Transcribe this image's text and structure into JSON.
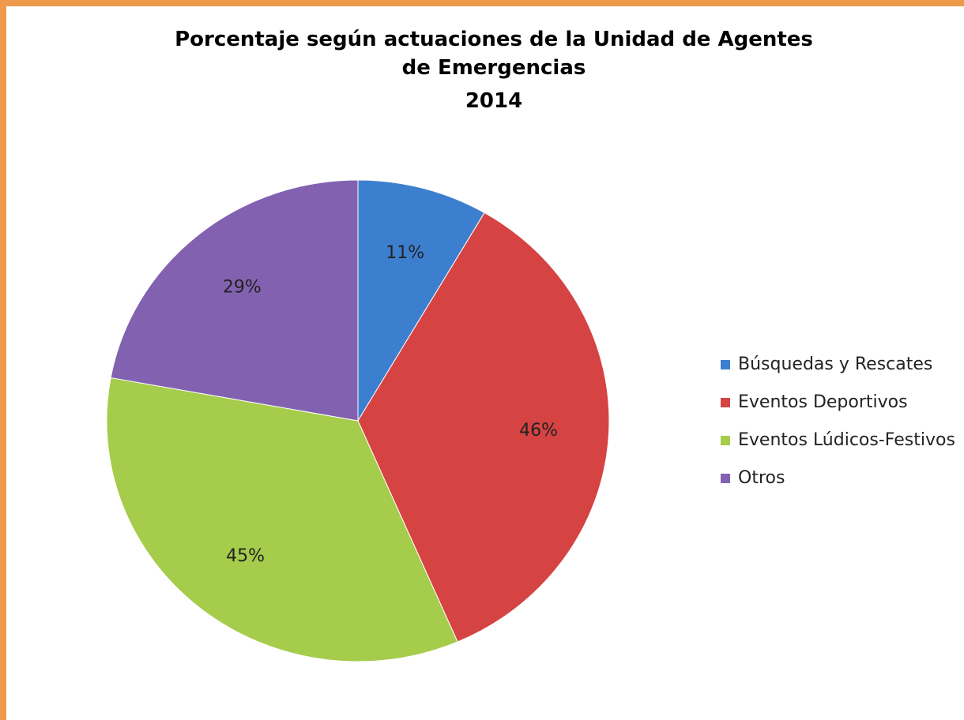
{
  "chart_data": {
    "type": "pie",
    "title": "Porcentaje según actuaciones de la Unidad de Agentes de Emergencias",
    "subtitle": "2014",
    "categories": [
      "Búsquedas y Rescates",
      "Eventos Deportivos",
      "Eventos Lúdicos-Festivos",
      "Otros"
    ],
    "values": [
      11,
      46,
      45,
      29
    ],
    "value_labels": [
      "11%",
      "46%",
      "45%",
      "29%"
    ],
    "colors": [
      "#3d7fcf",
      "#d64343",
      "#a5cc4a",
      "#8262b0"
    ],
    "legend": "right"
  }
}
